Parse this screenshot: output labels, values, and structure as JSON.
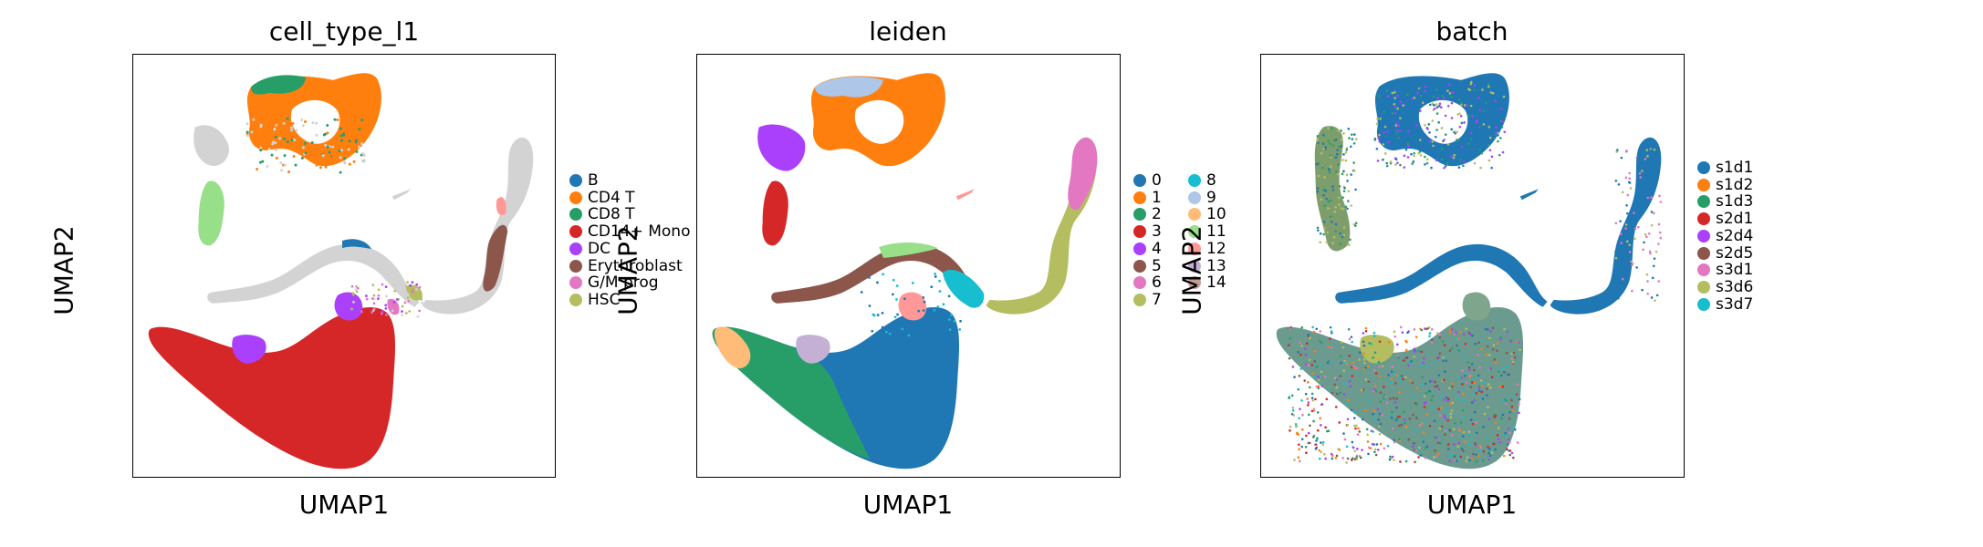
{
  "chart_data": [
    {
      "type": "scatter",
      "title": "cell_type_l1",
      "xlabel": "UMAP1",
      "ylabel": "UMAP2",
      "grid": false,
      "legend_placement": "right",
      "legend_columns": 1,
      "categories": [
        {
          "name": "B",
          "color": "#1f77b4"
        },
        {
          "name": "CD4 T",
          "color": "#ff7f0e"
        },
        {
          "name": "CD8 T",
          "color": "#279e68"
        },
        {
          "name": "CD14+ Mono",
          "color": "#d62728"
        },
        {
          "name": "DC",
          "color": "#aa40fc"
        },
        {
          "name": "Erythroblast",
          "color": "#8c564b"
        },
        {
          "name": "G/M prog",
          "color": "#e377c2"
        },
        {
          "name": "HSC",
          "color": "#b5bd61"
        }
      ],
      "unlabeled_color": "#d3d3d3"
    },
    {
      "type": "scatter",
      "title": "leiden",
      "xlabel": "UMAP1",
      "ylabel": "UMAP2",
      "grid": false,
      "legend_placement": "right",
      "legend_columns": 2,
      "categories": [
        {
          "name": "0",
          "color": "#1f77b4"
        },
        {
          "name": "1",
          "color": "#ff7f0e"
        },
        {
          "name": "2",
          "color": "#279e68"
        },
        {
          "name": "3",
          "color": "#d62728"
        },
        {
          "name": "4",
          "color": "#aa40fc"
        },
        {
          "name": "5",
          "color": "#8c564b"
        },
        {
          "name": "6",
          "color": "#e377c2"
        },
        {
          "name": "7",
          "color": "#b5bd61"
        },
        {
          "name": "8",
          "color": "#17becf"
        },
        {
          "name": "9",
          "color": "#aec7e8"
        },
        {
          "name": "10",
          "color": "#ffbb78"
        },
        {
          "name": "11",
          "color": "#98df8a"
        },
        {
          "name": "12",
          "color": "#ff9896"
        },
        {
          "name": "13",
          "color": "#c5b0d5"
        },
        {
          "name": "14",
          "color": "#c49c94"
        }
      ]
    },
    {
      "type": "scatter",
      "title": "batch",
      "xlabel": "UMAP1",
      "ylabel": "UMAP2",
      "grid": false,
      "legend_placement": "right",
      "legend_columns": 1,
      "categories": [
        {
          "name": "s1d1",
          "color": "#1f77b4"
        },
        {
          "name": "s1d2",
          "color": "#ff7f0e"
        },
        {
          "name": "s1d3",
          "color": "#279e68"
        },
        {
          "name": "s2d1",
          "color": "#d62728"
        },
        {
          "name": "s2d4",
          "color": "#aa40fc"
        },
        {
          "name": "s2d5",
          "color": "#8c564b"
        },
        {
          "name": "s3d1",
          "color": "#e377c2"
        },
        {
          "name": "s3d6",
          "color": "#b5bd61"
        },
        {
          "name": "s3d7",
          "color": "#17becf"
        }
      ]
    }
  ]
}
